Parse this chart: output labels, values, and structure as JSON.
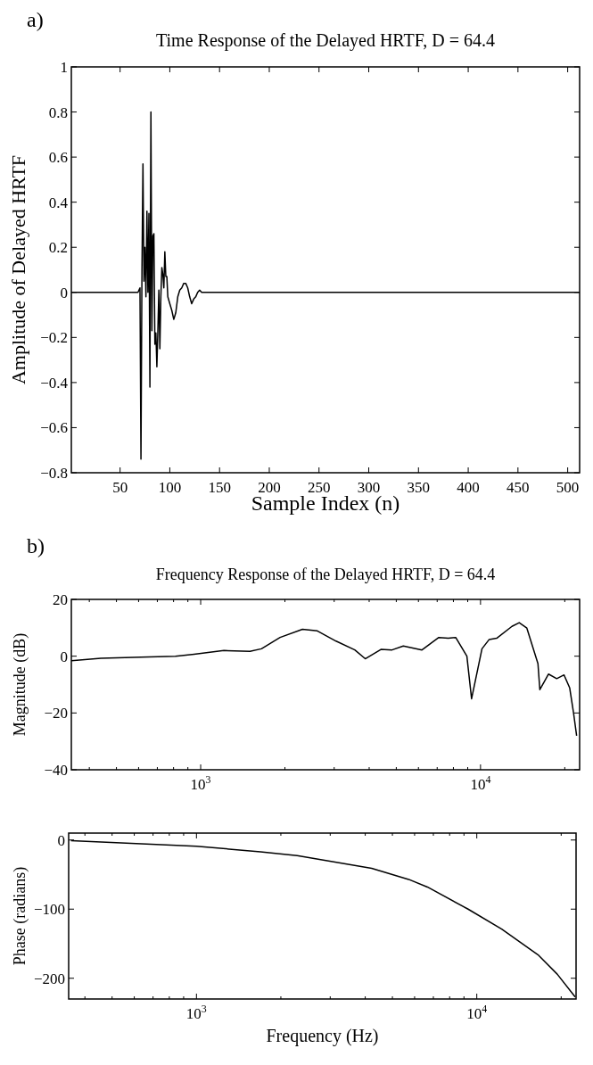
{
  "chart_data": [
    {
      "type": "line",
      "title": "Time Response of the Delayed HRTF, D = 64.4",
      "xlabel": "Sample Index (n)",
      "ylabel": "Amplitude of Delayed HRTF",
      "annotations": [
        "a)"
      ],
      "x": [
        1,
        68,
        69,
        70,
        71,
        72,
        73,
        74,
        75,
        76,
        77,
        78,
        79,
        80,
        81,
        82,
        83,
        84,
        85,
        86,
        87,
        88,
        89,
        90,
        91,
        92,
        93,
        94,
        95,
        96,
        97,
        98,
        100,
        102,
        104,
        106,
        108,
        110,
        112,
        114,
        116,
        118,
        120,
        122,
        124,
        126,
        128,
        130,
        132,
        512
      ],
      "series": [
        {
          "color": "#000000",
          "values": [
            0,
            0,
            0.01,
            0.02,
            -0.74,
            0.1,
            0.57,
            0.05,
            0.2,
            -0.02,
            0.36,
            0.0,
            0.35,
            -0.42,
            0.8,
            -0.17,
            0.25,
            0.26,
            -0.23,
            -0.18,
            -0.33,
            -0.17,
            0.01,
            -0.25,
            -0.02,
            0.11,
            0.08,
            0.02,
            0.18,
            0.07,
            0.07,
            -0.02,
            -0.05,
            -0.08,
            -0.12,
            -0.09,
            -0.02,
            0.01,
            0.02,
            0.04,
            0.04,
            0.02,
            -0.02,
            -0.05,
            -0.03,
            -0.02,
            0.0,
            0.01,
            0.0,
            0
          ]
        }
      ],
      "xlim": [
        1,
        512
      ],
      "xticks": [
        50,
        100,
        150,
        200,
        250,
        300,
        350,
        400,
        450,
        500
      ],
      "ylim": [
        -0.8,
        1
      ],
      "yticks": [
        -0.8,
        -0.6,
        -0.4,
        -0.2,
        0,
        0.2,
        0.4,
        0.6,
        0.8,
        1
      ]
    },
    {
      "type": "line",
      "title": "Frequency Response of the Delayed HRTF, D = 64.4",
      "ylabel": "Magnitude (dB)",
      "annotations": [
        "b)"
      ],
      "log": "x",
      "x": [
        345,
        440,
        655,
        812,
        947,
        1211,
        1500,
        1649,
        1922,
        2311,
        2612,
        3047,
        3554,
        3873,
        4407,
        4830,
        5297,
        6177,
        7095,
        7670,
        8152,
        8938,
        9290,
        10120,
        10740,
        11420,
        12950,
        13750,
        14640,
        16040,
        16290,
        17500,
        18720,
        19880,
        20830,
        21500,
        22050
      ],
      "series": [
        {
          "color": "#000000",
          "values": [
            -1.6,
            -0.7,
            -0.3,
            0,
            0.7,
            2.0,
            1.7,
            2.6,
            6.6,
            9.5,
            8.9,
            5.3,
            2.2,
            -0.9,
            2.4,
            2.2,
            3.6,
            2.2,
            6.6,
            6.3,
            6.6,
            0,
            -15,
            2.6,
            5.9,
            6.3,
            10.5,
            11.8,
            9.9,
            -2.6,
            -11.8,
            -6.3,
            -7.9,
            -6.6,
            -11.2,
            -20,
            -28
          ]
        }
      ],
      "xlim": [
        345,
        22600
      ],
      "xticks": [
        {
          "value": 400,
          "label": null
        },
        {
          "value": 500,
          "label": null
        },
        {
          "value": 600,
          "label": null
        },
        {
          "value": 700,
          "label": null
        },
        {
          "value": 800,
          "label": null
        },
        {
          "value": 900,
          "label": null
        },
        {
          "value": 1000,
          "label": "10$^{3}$"
        },
        {
          "value": 2000,
          "label": null
        },
        {
          "value": 3000,
          "label": null
        },
        {
          "value": 4000,
          "label": null
        },
        {
          "value": 5000,
          "label": null
        },
        {
          "value": 6000,
          "label": null
        },
        {
          "value": 7000,
          "label": null
        },
        {
          "value": 8000,
          "label": null
        },
        {
          "value": 9000,
          "label": null
        },
        {
          "value": 10000,
          "label": "10$^{4}$"
        },
        {
          "value": 20000,
          "label": null
        }
      ],
      "ylim": [
        -40,
        20
      ],
      "yticks": [
        -40,
        -20,
        0,
        20
      ]
    },
    {
      "type": "line",
      "xlabel": "Frequency (Hz)",
      "ylabel": "Phase (radians)",
      "log": "x",
      "x": [
        357,
        1000,
        1691,
        2287,
        4217,
        5716,
        6664,
        9310,
        12270,
        16640,
        19360,
        22440
      ],
      "series": [
        {
          "color": "#000000",
          "values": [
            -1,
            -9,
            -17,
            -22.5,
            -41,
            -57,
            -68,
            -100,
            -129,
            -167,
            -194,
            -227
          ]
        }
      ],
      "xlim": [
        350,
        22600
      ],
      "xticks": [
        {
          "value": 400,
          "label": null
        },
        {
          "value": 500,
          "label": null
        },
        {
          "value": 600,
          "label": null
        },
        {
          "value": 700,
          "label": null
        },
        {
          "value": 800,
          "label": null
        },
        {
          "value": 900,
          "label": null
        },
        {
          "value": 1000,
          "label": "10$^{3}$"
        },
        {
          "value": 2000,
          "label": null
        },
        {
          "value": 3000,
          "label": null
        },
        {
          "value": 4000,
          "label": null
        },
        {
          "value": 5000,
          "label": null
        },
        {
          "value": 6000,
          "label": null
        },
        {
          "value": 7000,
          "label": null
        },
        {
          "value": 8000,
          "label": null
        },
        {
          "value": 9000,
          "label": null
        },
        {
          "value": 10000,
          "label": "10$^{4}$"
        },
        {
          "value": 20000,
          "label": null
        }
      ],
      "ylim": [
        -230,
        10
      ],
      "yticks": [
        -200,
        -100,
        0
      ]
    }
  ]
}
